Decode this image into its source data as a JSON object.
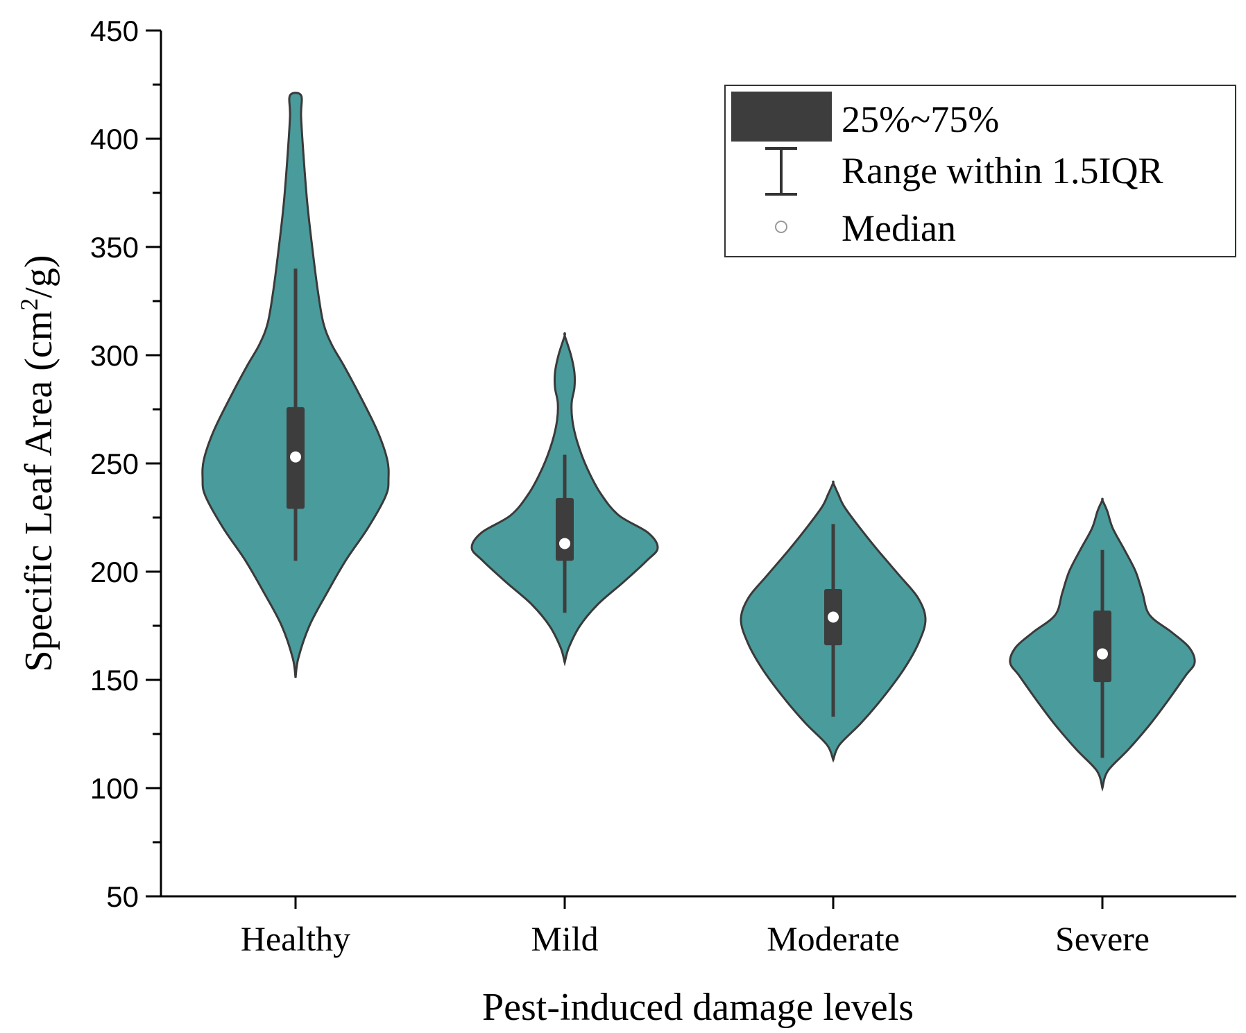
{
  "chart_data": {
    "type": "violin",
    "xlabel": "Pest-induced damage levels",
    "ylabel": "Specific Leaf Area (cm²/g)",
    "ylabel_parts": {
      "main": "Specific Leaf Area (cm",
      "sup": "2",
      "end": "/g)"
    },
    "ylim": [
      50,
      450
    ],
    "yticks": [
      50,
      100,
      150,
      200,
      250,
      300,
      350,
      400,
      450
    ],
    "ytick_labels": [
      "50",
      "100",
      "150",
      "200",
      "250",
      "300",
      "350",
      "400",
      "450"
    ],
    "grid": false,
    "legend_position": "top-right",
    "legend": {
      "box_label": "25%~75%",
      "whisker_label": "Range within 1.5IQR",
      "median_label": "Median"
    },
    "colors": {
      "violin_fill": "#4a9b9c",
      "violin_stroke": "#3a3a3a",
      "box": "#3d3d3d",
      "median": "#ffffff"
    },
    "categories": [
      "Healthy",
      "Mild",
      "Moderate",
      "Severe"
    ],
    "stats": [
      {
        "name": "Healthy",
        "min": 151,
        "max": 420,
        "q1": 229,
        "median": 253,
        "q3": 276,
        "whisker_low": 205,
        "whisker_high": 340
      },
      {
        "name": "Mild",
        "min": 158,
        "max": 309,
        "q1": 205,
        "median": 213,
        "q3": 234,
        "whisker_low": 181,
        "whisker_high": 254
      },
      {
        "name": "Moderate",
        "min": 113,
        "max": 241,
        "q1": 166,
        "median": 179,
        "q3": 192,
        "whisker_low": 133,
        "whisker_high": 222
      },
      {
        "name": "Severe",
        "min": 100,
        "max": 233,
        "q1": 149,
        "median": 162,
        "q3": 182,
        "whisker_low": 114,
        "whisker_high": 210
      }
    ],
    "density_half_width": [
      [
        [
          151,
          0
        ],
        [
          160,
          4
        ],
        [
          175,
          20
        ],
        [
          190,
          45
        ],
        [
          205,
          72
        ],
        [
          220,
          104
        ],
        [
          235,
          130
        ],
        [
          243,
          134
        ],
        [
          252,
          132
        ],
        [
          265,
          118
        ],
        [
          280,
          95
        ],
        [
          295,
          70
        ],
        [
          305,
          52
        ],
        [
          315,
          40
        ],
        [
          330,
          32
        ],
        [
          350,
          24
        ],
        [
          370,
          17
        ],
        [
          390,
          12
        ],
        [
          410,
          8
        ],
        [
          420,
          8
        ]
      ],
      [
        [
          158,
          0
        ],
        [
          165,
          6
        ],
        [
          175,
          22
        ],
        [
          185,
          48
        ],
        [
          195,
          84
        ],
        [
          205,
          118
        ],
        [
          211,
          134
        ],
        [
          218,
          120
        ],
        [
          226,
          78
        ],
        [
          236,
          52
        ],
        [
          248,
          32
        ],
        [
          260,
          18
        ],
        [
          270,
          11
        ],
        [
          278,
          10
        ],
        [
          285,
          14
        ],
        [
          292,
          14
        ],
        [
          300,
          9
        ],
        [
          309,
          0
        ]
      ],
      [
        [
          113,
          0
        ],
        [
          120,
          9
        ],
        [
          130,
          40
        ],
        [
          142,
          72
        ],
        [
          155,
          102
        ],
        [
          167,
          123
        ],
        [
          178,
          133
        ],
        [
          188,
          122
        ],
        [
          198,
          96
        ],
        [
          210,
          64
        ],
        [
          220,
          39
        ],
        [
          230,
          16
        ],
        [
          236,
          7
        ],
        [
          241,
          0
        ]
      ],
      [
        [
          100,
          0
        ],
        [
          108,
          8
        ],
        [
          118,
          38
        ],
        [
          130,
          70
        ],
        [
          142,
          98
        ],
        [
          152,
          120
        ],
        [
          158,
          133
        ],
        [
          165,
          125
        ],
        [
          172,
          100
        ],
        [
          180,
          68
        ],
        [
          190,
          58
        ],
        [
          200,
          48
        ],
        [
          210,
          32
        ],
        [
          220,
          15
        ],
        [
          228,
          7
        ],
        [
          233,
          0
        ]
      ]
    ]
  }
}
